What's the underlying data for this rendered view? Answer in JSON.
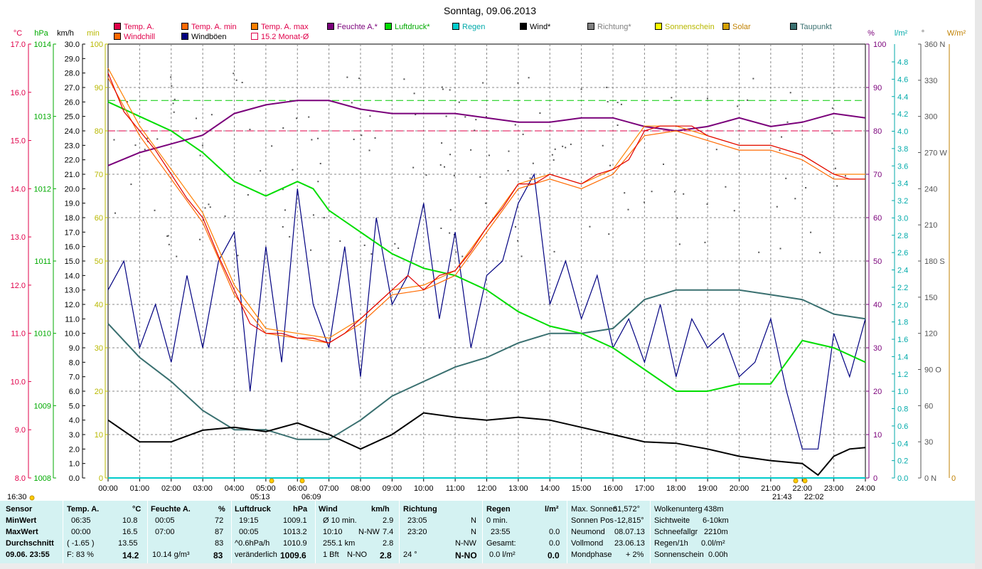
{
  "title": "Sonntag, 09.06.2013",
  "colors": {
    "temp": "#e0004a",
    "temp_min": "#ff6a00",
    "temp_max": "#ff8000",
    "feuchte": "#7a007a",
    "luftdruck": "#00dd00",
    "regen": "#00cccc",
    "wind": "#000000",
    "richtung": "#808080",
    "sonnenschein": "#ffff00",
    "solar": "#d4a000",
    "taupunkt": "#3a7070",
    "windchill": "#ff6a00",
    "windboeen": "#000080",
    "monat": "#e0004a"
  },
  "legend": [
    {
      "label": "Temp. A.",
      "color": "#e0004a",
      "text_color": "#e0004a"
    },
    {
      "label": "Temp. A. min",
      "color": "#ff6a00",
      "text_color": "#e0004a"
    },
    {
      "label": "Temp. A. max",
      "color": "#ff8000",
      "text_color": "#e0004a"
    },
    {
      "label": "Feuchte A.*",
      "color": "#7a007a",
      "text_color": "#7a007a"
    },
    {
      "label": "Luftdruck*",
      "color": "#00dd00",
      "text_color": "#00aa00"
    },
    {
      "label": "Regen",
      "color": "#00cccc",
      "text_color": "#00aaaa"
    },
    {
      "label": "Wind*",
      "color": "#000000",
      "text_color": "#000000"
    },
    {
      "label": "Richtung*",
      "color": "#808080",
      "text_color": "#808080"
    },
    {
      "label": "Sonnenschein",
      "color": "#ffff00",
      "text_color": "#b8b800"
    },
    {
      "label": "Solar",
      "color": "#d4a000",
      "text_color": "#c08000"
    },
    {
      "label": "Taupunkt",
      "color": "#3a7070",
      "text_color": "#3a7070"
    },
    {
      "label": "Windchill",
      "color": "#ff6a00",
      "text_color": "#e0004a"
    },
    {
      "label": "Windböen",
      "color": "#000080",
      "text_color": "#000000"
    },
    {
      "label": "15.2 Monat-Ø",
      "color": "#ffffff",
      "text_color": "#e0004a"
    }
  ],
  "axes": {
    "temp": {
      "unit": "°C",
      "ticks": [
        "17.0",
        "16.0",
        "15.0",
        "14.0",
        "13.0",
        "12.0",
        "11.0",
        "10.0",
        "9.0",
        "8.0"
      ]
    },
    "pressure": {
      "unit": "hPa",
      "ticks": [
        "1014",
        "1013",
        "1012",
        "1011",
        "1010",
        "1009",
        "1008"
      ]
    },
    "wind": {
      "unit": "km/h",
      "ticks": [
        "30.0",
        "29.0",
        "28.0",
        "27.0",
        "26.0",
        "25.0",
        "24.0",
        "23.0",
        "22.0",
        "21.0",
        "20.0",
        "19.0",
        "18.0",
        "17.0",
        "16.0",
        "15.0",
        "14.0",
        "13.0",
        "12.0",
        "11.0",
        "10.0",
        "9.0",
        "8.0",
        "7.0",
        "6.0",
        "5.0",
        "4.0",
        "3.0",
        "2.0",
        "1.0",
        "0.0"
      ]
    },
    "min": {
      "unit": "min",
      "ticks": [
        "100",
        "90",
        "80",
        "70",
        "60",
        "50",
        "40",
        "30",
        "20",
        "10",
        "0"
      ]
    },
    "humidity": {
      "unit": "%",
      "ticks": [
        "100",
        "90",
        "80",
        "70",
        "60",
        "50",
        "40",
        "30",
        "20",
        "10",
        "0"
      ]
    },
    "rain": {
      "unit": "l/m²",
      "ticks": [
        "4.8",
        "4.6",
        "4.4",
        "4.2",
        "4.0",
        "3.8",
        "3.6",
        "3.4",
        "3.2",
        "3.0",
        "2.8",
        "2.6",
        "2.4",
        "2.2",
        "2.0",
        "1.8",
        "1.6",
        "1.4",
        "1.2",
        "1.0",
        "0.8",
        "0.6",
        "0.4",
        "0.2",
        "0.0"
      ]
    },
    "direction": {
      "unit": "°",
      "ticks": [
        "360 N",
        "330",
        "300",
        "270 W",
        "240",
        "210",
        "180 S",
        "150",
        "120",
        "90  O",
        "60",
        "30",
        "0   N"
      ]
    },
    "solar": {
      "unit": "W/m²",
      "ticks": [
        "0"
      ]
    },
    "time": [
      "00:00",
      "01:00",
      "02:00",
      "03:00",
      "04:00",
      "05:00",
      "06:00",
      "07:00",
      "08:00",
      "09:00",
      "10:00",
      "11:00",
      "12:00",
      "13:00",
      "14:00",
      "15:00",
      "16:00",
      "17:00",
      "18:00",
      "19:00",
      "20:00",
      "21:00",
      "22:00",
      "23:00",
      "24:00"
    ]
  },
  "sun_markers": {
    "left": "16:30",
    "sunrise": "05:13",
    "sunrise2": "06:09",
    "sunset": "21:43",
    "sunset2": "22:02"
  },
  "chart_data": {
    "type": "line",
    "title": "Sonntag, 09.06.2013",
    "x_unit": "hour",
    "xlim": [
      0,
      24
    ],
    "reference_lines": [
      {
        "name": "15.2 Monat-Ø",
        "axis": "temp",
        "value": 15.2
      },
      {
        "axis": "humidity",
        "value": 80
      },
      {
        "axis": "humidity",
        "value": 87
      }
    ],
    "series": [
      {
        "name": "Temp. A.",
        "axis": "temp",
        "ylim": [
          8,
          17
        ],
        "x": [
          0,
          0.5,
          1,
          1.5,
          2,
          2.5,
          3,
          3.5,
          4,
          4.5,
          5,
          5.5,
          6,
          6.5,
          7,
          7.5,
          8,
          8.5,
          9,
          9.5,
          10,
          10.5,
          11,
          11.5,
          12,
          12.5,
          13,
          13.5,
          14,
          14.5,
          15,
          15.5,
          16,
          16.5,
          17,
          17.5,
          18,
          18.5,
          19,
          19.5,
          20,
          20.5,
          21,
          21.5,
          22,
          22.5,
          23,
          23.5,
          24
        ],
        "y": [
          16.4,
          15.6,
          15.2,
          14.8,
          14.3,
          13.8,
          13.4,
          12.6,
          11.9,
          11.2,
          11.0,
          11.0,
          10.9,
          10.9,
          10.8,
          11.0,
          11.3,
          11.6,
          11.9,
          12.2,
          11.9,
          12.2,
          12.3,
          12.7,
          13.2,
          13.6,
          14.1,
          14.1,
          14.3,
          14.2,
          14.1,
          14.3,
          14.4,
          14.6,
          15.2,
          15.3,
          15.3,
          15.3,
          15.1,
          15.0,
          14.9,
          14.9,
          14.9,
          14.8,
          14.7,
          14.5,
          14.3,
          14.2,
          14.2
        ]
      },
      {
        "name": "Temp. A. min",
        "axis": "temp",
        "ylim": [
          8,
          17
        ],
        "x": [
          0,
          1,
          2,
          3,
          4,
          5,
          6,
          7,
          8,
          9,
          10,
          11,
          12,
          13,
          14,
          15,
          16,
          17,
          18,
          19,
          20,
          21,
          22,
          23,
          24
        ],
        "y": [
          16.3,
          15.1,
          14.2,
          13.3,
          11.8,
          11.0,
          10.9,
          10.8,
          11.2,
          11.8,
          11.9,
          12.2,
          13.1,
          14.0,
          14.2,
          14.0,
          14.3,
          15.1,
          15.2,
          15.0,
          14.8,
          14.8,
          14.6,
          14.2,
          14.2
        ]
      },
      {
        "name": "Temp. A. max",
        "axis": "temp",
        "ylim": [
          8,
          17
        ],
        "x": [
          0,
          1,
          2,
          3,
          4,
          5,
          6,
          7,
          8,
          9,
          10,
          11,
          12,
          13,
          14,
          15,
          16,
          17,
          18,
          19,
          20,
          21,
          22,
          23,
          24
        ],
        "y": [
          16.5,
          15.3,
          14.4,
          13.5,
          12.0,
          11.1,
          11.0,
          10.9,
          11.3,
          11.9,
          12.0,
          12.3,
          13.2,
          14.1,
          14.3,
          14.1,
          14.4,
          15.3,
          15.3,
          15.1,
          14.9,
          14.9,
          14.7,
          14.3,
          14.3
        ]
      },
      {
        "name": "Feuchte A.*",
        "axis": "humidity",
        "ylim": [
          0,
          100
        ],
        "x": [
          0,
          1,
          2,
          3,
          4,
          5,
          6,
          7,
          8,
          9,
          10,
          11,
          12,
          13,
          14,
          15,
          16,
          17,
          18,
          19,
          20,
          21,
          22,
          23,
          24
        ],
        "y": [
          72,
          75,
          77,
          79,
          84,
          86,
          87,
          87,
          85,
          84,
          84,
          84,
          83,
          82,
          82,
          83,
          83,
          81,
          80,
          81,
          83,
          81,
          82,
          84,
          83
        ]
      },
      {
        "name": "Luftdruck*",
        "axis": "pressure",
        "ylim": [
          1008,
          1014
        ],
        "x": [
          0,
          1,
          2,
          3,
          4,
          5,
          6,
          6.5,
          7,
          8,
          9,
          10,
          11,
          12,
          13,
          14,
          15,
          16,
          17,
          18,
          19,
          20,
          21,
          22,
          23,
          24
        ],
        "y": [
          1013.2,
          1013.0,
          1012.8,
          1012.5,
          1012.1,
          1011.9,
          1012.1,
          1012.0,
          1011.7,
          1011.4,
          1011.1,
          1010.9,
          1010.8,
          1010.6,
          1010.3,
          1010.1,
          1010.0,
          1009.8,
          1009.5,
          1009.2,
          1009.2,
          1009.3,
          1009.3,
          1009.9,
          1009.8,
          1009.6
        ]
      },
      {
        "name": "Regen",
        "axis": "rain",
        "ylim": [
          0,
          5
        ],
        "x": [
          0,
          24
        ],
        "y": [
          0,
          0
        ]
      },
      {
        "name": "Wind*",
        "axis": "wind",
        "ylim": [
          0,
          30
        ],
        "x": [
          0,
          1,
          2,
          3,
          4,
          5,
          6,
          7,
          8,
          9,
          10,
          11,
          12,
          13,
          14,
          15,
          16,
          17,
          18,
          19,
          20,
          21,
          22,
          22.5,
          23,
          23.5,
          24
        ],
        "y": [
          4.0,
          2.5,
          2.5,
          3.3,
          3.5,
          3.2,
          3.8,
          3.0,
          2.0,
          3.0,
          4.5,
          4.2,
          4.0,
          4.2,
          4.0,
          3.5,
          3.0,
          2.5,
          2.4,
          2.0,
          1.5,
          1.2,
          1.0,
          0.2,
          1.5,
          2.0,
          2.1
        ]
      },
      {
        "name": "Windböen",
        "axis": "wind",
        "ylim": [
          0,
          30
        ],
        "x": [
          0,
          0.5,
          1,
          1.5,
          2,
          2.5,
          3,
          3.5,
          4,
          4.5,
          5,
          5.5,
          6,
          6.5,
          7,
          7.5,
          8,
          8.5,
          9,
          9.5,
          10,
          10.5,
          11,
          11.5,
          12,
          12.5,
          13,
          13.5,
          14,
          14.5,
          15,
          15.5,
          16,
          16.5,
          17,
          17.5,
          18,
          18.5,
          19,
          19.5,
          20,
          20.5,
          21,
          21.5,
          22,
          22.5,
          23,
          23.5,
          24
        ],
        "y": [
          13,
          15,
          9,
          12,
          8,
          14,
          9,
          15,
          17,
          6,
          16,
          8,
          20,
          12,
          9,
          16,
          7,
          18,
          12,
          14,
          19,
          11,
          17,
          9,
          14,
          15,
          19,
          21,
          12,
          15,
          11,
          14,
          9,
          11,
          8,
          12,
          7,
          11,
          9,
          10,
          7,
          8,
          11,
          6,
          2,
          2,
          10,
          7,
          11
        ]
      },
      {
        "name": "Taupunkt",
        "axis": "temp",
        "ylim": [
          8,
          17
        ],
        "x": [
          0,
          1,
          2,
          3,
          4,
          5,
          6,
          7,
          8,
          9,
          10,
          11,
          12,
          13,
          14,
          15,
          16,
          17,
          18,
          19,
          20,
          21,
          22,
          23,
          24
        ],
        "y": [
          11.2,
          10.5,
          10.0,
          9.4,
          9.0,
          9.0,
          8.8,
          8.8,
          9.2,
          9.7,
          10.0,
          10.3,
          10.5,
          10.8,
          11.0,
          11.0,
          11.1,
          11.7,
          11.9,
          11.9,
          11.9,
          11.8,
          11.7,
          11.4,
          11.3
        ]
      }
    ]
  },
  "stats": {
    "sensor": {
      "header": "Sensor",
      "rows": [
        "MinWert",
        "MaxWert",
        "Durchschnitt",
        "09.06. 23:55"
      ]
    },
    "temp": {
      "header": "Temp. A.",
      "unit": "°C",
      "rows": [
        [
          "06:35",
          "10.8"
        ],
        [
          "00:00",
          "16.5"
        ],
        [
          "( -1.65 )",
          "13.55"
        ],
        [
          "F: 83 %",
          "14.2"
        ]
      ]
    },
    "feuchte": {
      "header": "Feuchte A.",
      "unit": "%",
      "rows": [
        [
          "00:05",
          "72"
        ],
        [
          "07:00",
          "87"
        ],
        [
          "",
          "83"
        ],
        [
          "10.14 g/m³",
          "83"
        ]
      ]
    },
    "druck": {
      "header": "Luftdruck",
      "unit": "hPa",
      "rows": [
        [
          "19:15",
          "1009.1"
        ],
        [
          "00:05",
          "1013.2"
        ],
        [
          "^0.6hPa/h",
          "1010.9"
        ],
        [
          "veränderlich",
          "1009.6"
        ]
      ]
    },
    "wind": {
      "header": "Wind",
      "unit": "km/h",
      "rows": [
        [
          "Ø 10 min.",
          "",
          "2.9"
        ],
        [
          "10:10",
          "N-NW",
          "7.4"
        ],
        [
          "255.1 km",
          "",
          "2.8"
        ],
        [
          "1 Bft",
          "N-NO",
          "2.8"
        ]
      ]
    },
    "richtung": {
      "header": "Richtung",
      "rows": [
        [
          "23:05",
          "N"
        ],
        [
          "23:20",
          "N"
        ],
        [
          "",
          "N-NW"
        ],
        [
          "24 °",
          "N-NO"
        ]
      ]
    },
    "regen": {
      "header": "Regen",
      "unit": "l/m²",
      "rows": [
        [
          "0 min.",
          ""
        ],
        [
          "23:55",
          "0.0"
        ],
        [
          "Gesamt:",
          "0.0"
        ],
        [
          "0.0 l/m²",
          "0.0"
        ]
      ]
    },
    "sonne": {
      "rows": [
        [
          "Max. Sonnen",
          "61,572°"
        ],
        [
          "Sonnen Pos",
          "-12,815°"
        ],
        [
          "Neumond",
          "08.07.13"
        ],
        [
          "Vollmond",
          "23.06.13"
        ],
        [
          "Mondphase",
          "+ 2%"
        ]
      ]
    },
    "extra": {
      "rows": [
        [
          "Wolkenunterg",
          "438m"
        ],
        [
          "Sichtweite",
          "6-10km"
        ],
        [
          "Schneefallgr",
          "2210m"
        ],
        [
          "Regen/1h",
          "0.0l/m²"
        ],
        [
          "Sonnenschein",
          "0.00h"
        ]
      ]
    }
  }
}
